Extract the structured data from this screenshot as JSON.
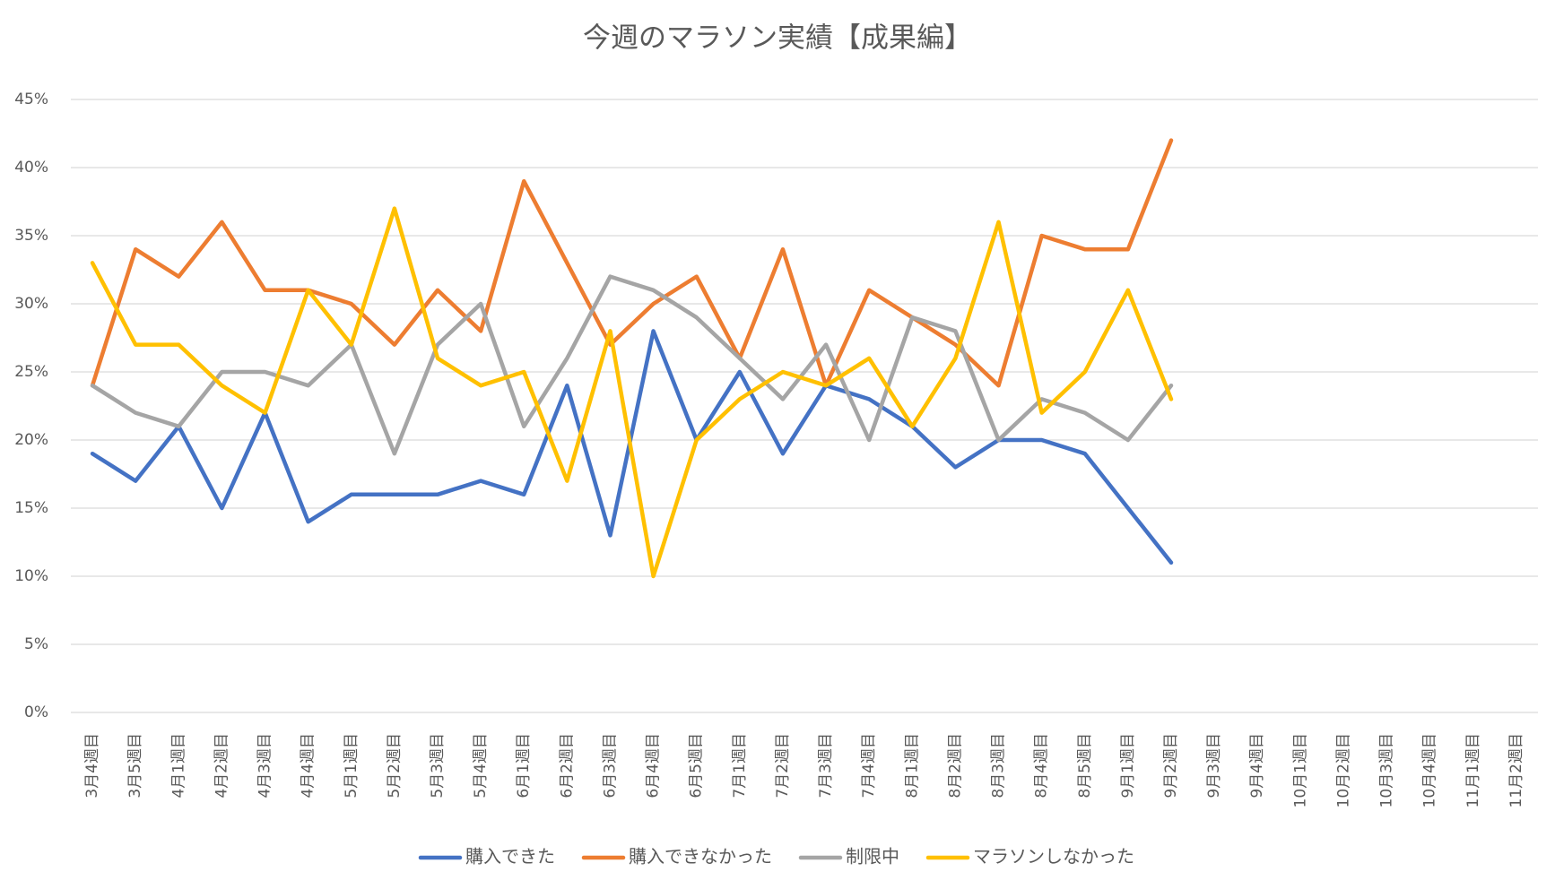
{
  "chart_data": {
    "type": "line",
    "title": "今週のマラソン実績【成果編】",
    "categories": [
      "3月4週目",
      "3月5週目",
      "4月1週目",
      "4月2週目",
      "4月3週目",
      "4月4週目",
      "5月1週目",
      "5月2週目",
      "5月3週目",
      "5月4週目",
      "6月1週目",
      "6月2週目",
      "6月3週目",
      "6月4週目",
      "6月5週目",
      "7月1週目",
      "7月2週目",
      "7月3週目",
      "7月4週目",
      "8月1週目",
      "8月2週目",
      "8月3週目",
      "8月4週目",
      "8月5週目",
      "9月1週目",
      "9月2週目",
      "9月3週目",
      "9月4週目",
      "10月1週目",
      "10月2週目",
      "10月3週目",
      "10月4週目",
      "11月1週目",
      "11月2週目"
    ],
    "series": [
      {
        "name": "購入できた",
        "color": "#4472c4",
        "values": [
          19,
          17,
          21,
          15,
          22,
          14,
          16,
          16,
          16,
          17,
          16,
          24,
          13,
          28,
          20,
          25,
          19,
          24,
          23,
          21,
          18,
          20,
          20,
          19,
          15,
          11,
          null,
          null,
          null,
          null,
          null,
          null,
          null,
          null
        ]
      },
      {
        "name": "購入できなかった",
        "color": "#ed7d31",
        "values": [
          24,
          34,
          32,
          36,
          31,
          31,
          30,
          27,
          31,
          28,
          39,
          33,
          27,
          30,
          32,
          26,
          34,
          24,
          31,
          29,
          27,
          24,
          35,
          34,
          34,
          42,
          null,
          null,
          null,
          null,
          null,
          null,
          null,
          null
        ]
      },
      {
        "name": "制限中",
        "color": "#a5a5a5",
        "values": [
          24,
          22,
          21,
          25,
          25,
          24,
          27,
          19,
          27,
          30,
          21,
          26,
          32,
          31,
          29,
          26,
          23,
          27,
          20,
          29,
          28,
          20,
          23,
          22,
          20,
          24,
          null,
          null,
          null,
          null,
          null,
          null,
          null,
          null
        ]
      },
      {
        "name": "マラソンしなかった",
        "color": "#ffc000",
        "values": [
          33,
          27,
          27,
          24,
          22,
          31,
          27,
          37,
          26,
          24,
          25,
          17,
          28,
          10,
          20,
          23,
          25,
          24,
          26,
          21,
          26,
          36,
          22,
          25,
          31,
          23,
          null,
          null,
          null,
          null,
          null,
          null,
          null,
          null
        ]
      }
    ],
    "ylim": [
      0,
      45
    ],
    "yticks": [
      {
        "value": 0,
        "label": "0%"
      },
      {
        "value": 5,
        "label": "5%"
      },
      {
        "value": 10,
        "label": "10%"
      },
      {
        "value": 15,
        "label": "15%"
      },
      {
        "value": 20,
        "label": "20%"
      },
      {
        "value": 25,
        "label": "25%"
      },
      {
        "value": 30,
        "label": "30%"
      },
      {
        "value": 35,
        "label": "35%"
      },
      {
        "value": 40,
        "label": "40%"
      },
      {
        "value": 45,
        "label": "45%"
      }
    ],
    "grid": true,
    "legend": "bottom"
  }
}
